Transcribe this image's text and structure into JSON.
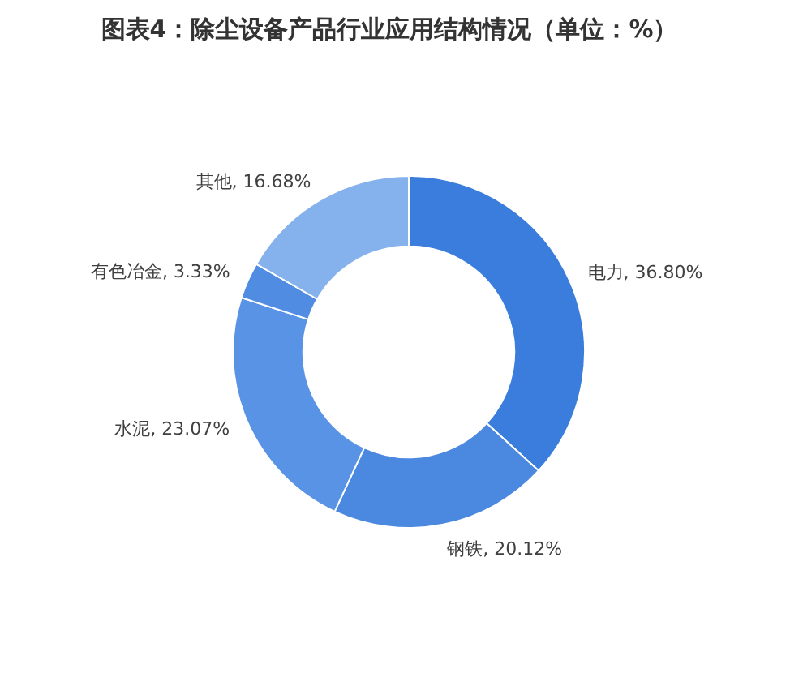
{
  "chart_data": {
    "type": "donut",
    "title": "图表4：除尘设备产品行业应用结构情况（单位：%）",
    "categories": [
      "电力",
      "钢铁",
      "水泥",
      "有色冶金",
      "其他"
    ],
    "values": [
      36.8,
      20.12,
      23.07,
      3.33,
      16.68
    ],
    "colors": [
      "#3b7ddd",
      "#4b89e0",
      "#5893e5",
      "#4f8ce2",
      "#85b1ed"
    ],
    "value_labels": [
      "36.80%",
      "20.12%",
      "23.07%",
      "3.33%",
      "16.68%"
    ],
    "legend": false
  }
}
